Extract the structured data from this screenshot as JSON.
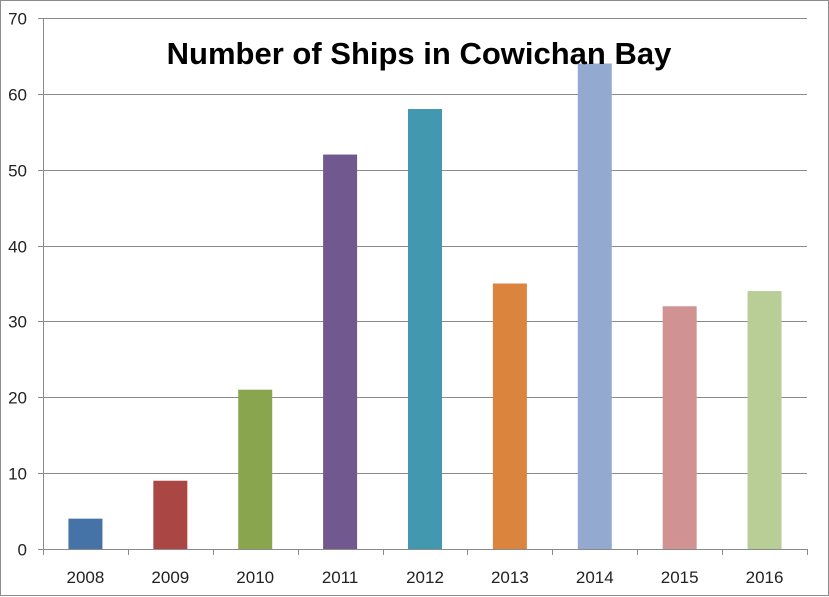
{
  "chart_data": {
    "type": "bar",
    "title": "Number of Ships in Cowichan Bay",
    "xlabel": "",
    "ylabel": "",
    "categories": [
      "2008",
      "2009",
      "2010",
      "2011",
      "2012",
      "2013",
      "2014",
      "2015",
      "2016"
    ],
    "values": [
      4,
      9,
      21,
      52,
      58,
      35,
      64,
      32,
      34
    ],
    "colors": [
      "#4572a7",
      "#aa4643",
      "#89a54e",
      "#71588f",
      "#4198af",
      "#db843d",
      "#93a9cf",
      "#d19392",
      "#b9cd96"
    ],
    "ylim": [
      0,
      70
    ],
    "yticks": [
      0,
      10,
      20,
      30,
      40,
      50,
      60,
      70
    ],
    "grid": true,
    "legend": "none"
  }
}
